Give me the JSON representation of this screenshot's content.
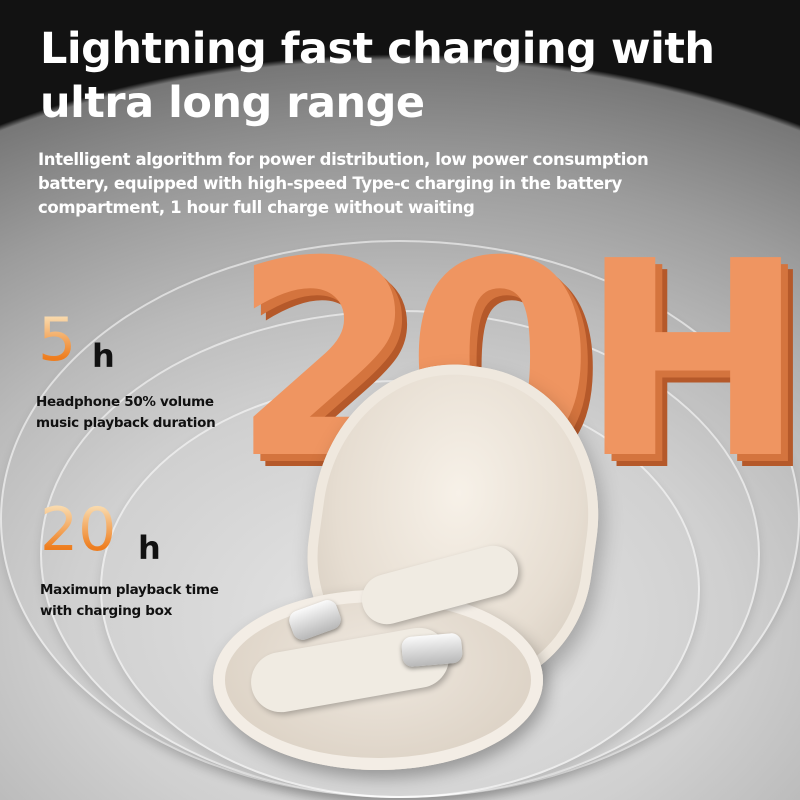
{
  "header": {
    "title_line1": "Lightning fast charging with",
    "title_line2": "ultra long range",
    "subtitle_line1": "Intelligent algorithm for power distribution, low power consumption",
    "subtitle_line2": "battery, equipped with high-speed Type-c charging in the battery",
    "subtitle_line3": "compartment, 1 hour full charge without waiting"
  },
  "hero": {
    "big_number": "20H",
    "accent_color": "#ef9561"
  },
  "stats": [
    {
      "value": "5",
      "unit": "h",
      "caption_line1": "Headphone 50% volume",
      "caption_line2": "music playback duration"
    },
    {
      "value": "20",
      "unit": "h",
      "caption_line1": "Maximum playback time",
      "caption_line2": "with charging box"
    }
  ]
}
